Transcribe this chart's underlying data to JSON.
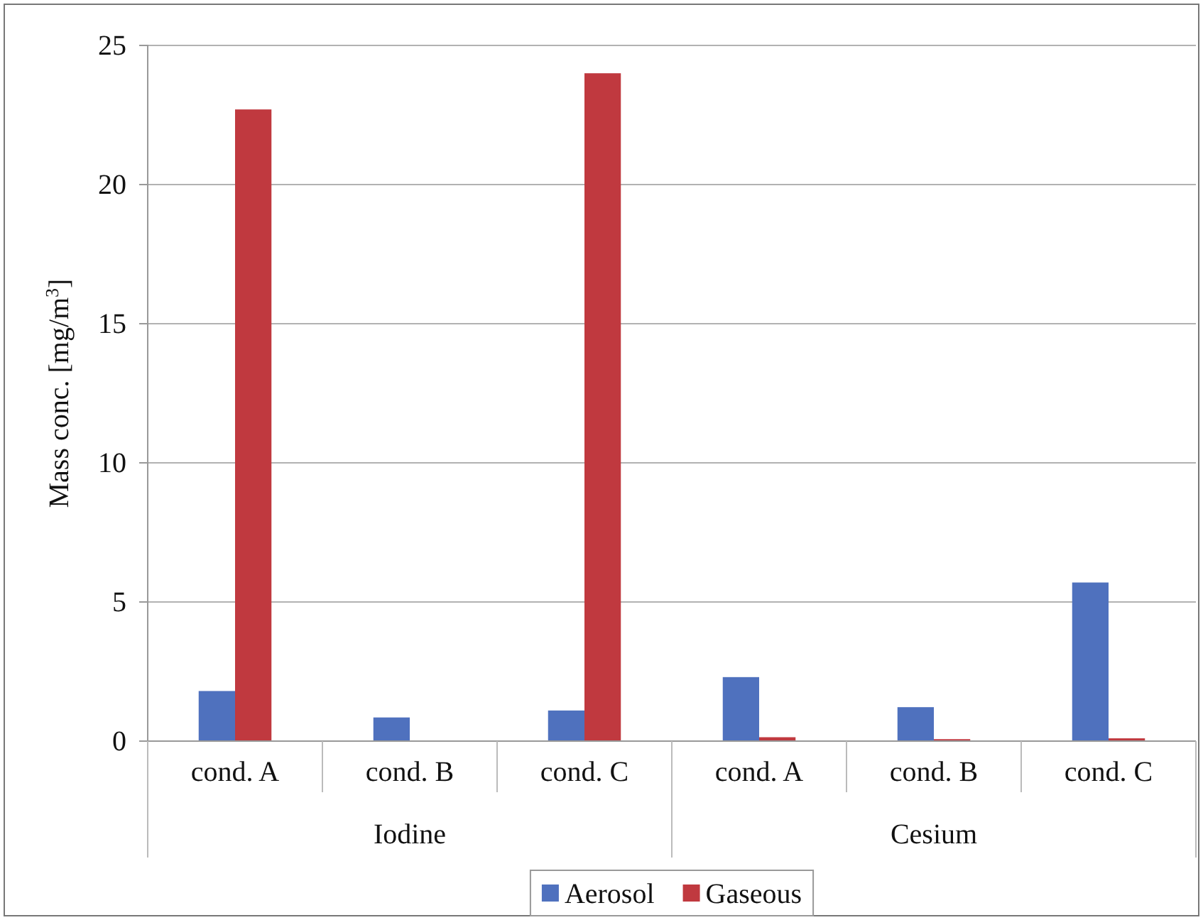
{
  "chart_data": {
    "type": "bar",
    "ylabel": "Mass conc. [mg/m$^{3}$]",
    "categories": [
      "cond. A",
      "cond. B",
      "cond. C",
      "cond. A",
      "cond. B",
      "cond. C"
    ],
    "annotations": [
      "Iodine",
      "Cesium"
    ],
    "series": [
      {
        "name": "Aerosol",
        "color": "#4f71be",
        "values": [
          1.8,
          0.85,
          1.1,
          2.3,
          1.22,
          5.7
        ]
      },
      {
        "name": "Gaseous",
        "color": "#c0393f",
        "values": [
          22.7,
          0,
          24.0,
          0.14,
          0.07,
          0.1
        ]
      }
    ],
    "ylim": [
      0,
      25
    ],
    "yticks": [
      0,
      5,
      10,
      15,
      20,
      25
    ],
    "grid": "y",
    "legend": "bottom"
  }
}
